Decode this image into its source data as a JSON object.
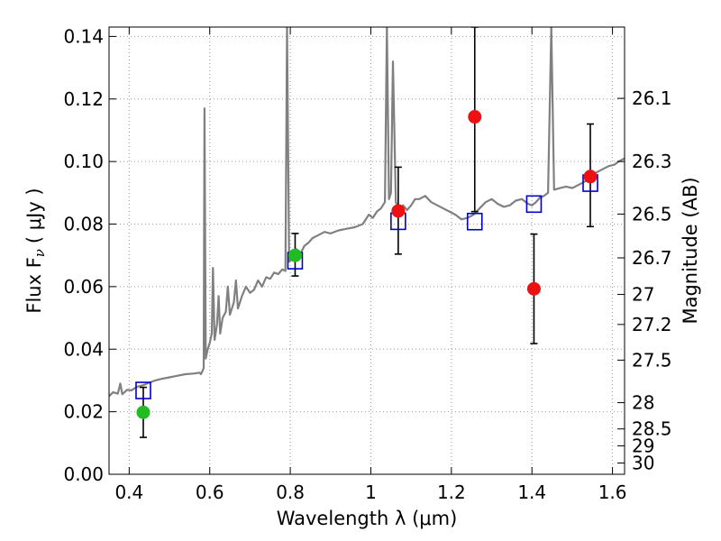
{
  "chart_data": {
    "type": "scatter",
    "xlabel": "Wavelength  λ (μm)",
    "ylabel": "Flux  F",
    "ylabel_sub": "ν",
    "ylabel_unit": "( μJy )",
    "y2label": "Magnitude (AB)",
    "xlim": [
      0.35,
      1.63
    ],
    "ylim": [
      0.0,
      0.143
    ],
    "grid": true,
    "x_ticks": [
      {
        "value": 0.4,
        "label": "0.4"
      },
      {
        "value": 0.6,
        "label": "0.6"
      },
      {
        "value": 0.8,
        "label": "0.8"
      },
      {
        "value": 1.0,
        "label": "1"
      },
      {
        "value": 1.2,
        "label": "1.2"
      },
      {
        "value": 1.4,
        "label": "1.4"
      },
      {
        "value": 1.6,
        "label": "1.6"
      }
    ],
    "y_ticks": [
      {
        "value": 0.0,
        "label": "0.00"
      },
      {
        "value": 0.02,
        "label": "0.02"
      },
      {
        "value": 0.04,
        "label": "0.04"
      },
      {
        "value": 0.06,
        "label": "0.06"
      },
      {
        "value": 0.08,
        "label": "0.08"
      },
      {
        "value": 0.1,
        "label": "0.10"
      },
      {
        "value": 0.12,
        "label": "0.12"
      },
      {
        "value": 0.14,
        "label": "0.14"
      }
    ],
    "mag_ticks": [
      {
        "flux": 0.1202,
        "label": "26.1"
      },
      {
        "flux": 0.1,
        "label": "26.3"
      },
      {
        "flux": 0.0832,
        "label": "26.5"
      },
      {
        "flux": 0.0692,
        "label": "26.7"
      },
      {
        "flux": 0.0575,
        "label": "27"
      },
      {
        "flux": 0.0479,
        "label": "27.2"
      },
      {
        "flux": 0.0365,
        "label": "27.5"
      },
      {
        "flux": 0.0229,
        "label": "28"
      },
      {
        "flux": 0.0145,
        "label": "28.5"
      },
      {
        "flux": 0.0091,
        "label": "29"
      },
      {
        "flux": 0.0036,
        "label": "30"
      }
    ],
    "model_points": [
      {
        "x": 0.435,
        "y": 0.0268
      },
      {
        "x": 0.812,
        "y": 0.0683
      },
      {
        "x": 1.068,
        "y": 0.0809
      },
      {
        "x": 1.258,
        "y": 0.0808
      },
      {
        "x": 1.405,
        "y": 0.0864
      },
      {
        "x": 1.545,
        "y": 0.0931
      }
    ],
    "obs_points": [
      {
        "x": 0.435,
        "y": 0.0198,
        "err_low": 0.0118,
        "err_high": 0.0278,
        "color": "#22bb22"
      },
      {
        "x": 0.812,
        "y": 0.07,
        "err_low": 0.0634,
        "err_high": 0.077,
        "color": "#22bb22"
      },
      {
        "x": 1.068,
        "y": 0.0842,
        "err_low": 0.0704,
        "err_high": 0.0982,
        "color": "#ee1111"
      },
      {
        "x": 1.258,
        "y": 0.1143,
        "err_low": 0.084,
        "err_high": 0.143,
        "color": "#ee1111"
      },
      {
        "x": 1.405,
        "y": 0.0593,
        "err_low": 0.0418,
        "err_high": 0.0768,
        "color": "#ee1111"
      },
      {
        "x": 1.545,
        "y": 0.0952,
        "err_low": 0.0792,
        "err_high": 0.112,
        "color": "#ee1111"
      }
    ],
    "spectrum": [
      [
        0.35,
        0.025
      ],
      [
        0.36,
        0.0262
      ],
      [
        0.372,
        0.0258
      ],
      [
        0.378,
        0.029
      ],
      [
        0.383,
        0.0256
      ],
      [
        0.395,
        0.027
      ],
      [
        0.405,
        0.0268
      ],
      [
        0.42,
        0.028
      ],
      [
        0.435,
        0.0285
      ],
      [
        0.45,
        0.0293
      ],
      [
        0.465,
        0.03
      ],
      [
        0.48,
        0.0305
      ],
      [
        0.5,
        0.031
      ],
      [
        0.52,
        0.0315
      ],
      [
        0.54,
        0.032
      ],
      [
        0.56,
        0.0322
      ],
      [
        0.575,
        0.0325
      ],
      [
        0.578,
        0.032
      ],
      [
        0.582,
        0.033
      ],
      [
        0.585,
        0.034
      ],
      [
        0.587,
        0.117
      ],
      [
        0.59,
        0.037
      ],
      [
        0.595,
        0.04
      ],
      [
        0.6,
        0.042
      ],
      [
        0.605,
        0.045
      ],
      [
        0.608,
        0.066
      ],
      [
        0.612,
        0.043
      ],
      [
        0.618,
        0.048
      ],
      [
        0.622,
        0.057
      ],
      [
        0.626,
        0.045
      ],
      [
        0.632,
        0.05
      ],
      [
        0.64,
        0.052
      ],
      [
        0.645,
        0.06
      ],
      [
        0.65,
        0.051
      ],
      [
        0.66,
        0.055
      ],
      [
        0.665,
        0.062
      ],
      [
        0.67,
        0.053
      ],
      [
        0.68,
        0.057
      ],
      [
        0.69,
        0.06
      ],
      [
        0.7,
        0.058
      ],
      [
        0.71,
        0.059
      ],
      [
        0.72,
        0.062
      ],
      [
        0.73,
        0.06
      ],
      [
        0.74,
        0.063
      ],
      [
        0.75,
        0.0625
      ],
      [
        0.76,
        0.0645
      ],
      [
        0.77,
        0.064
      ],
      [
        0.78,
        0.0655
      ],
      [
        0.788,
        0.065
      ],
      [
        0.792,
        0.143
      ],
      [
        0.797,
        0.068
      ],
      [
        0.805,
        0.069
      ],
      [
        0.815,
        0.072
      ],
      [
        0.825,
        0.0705
      ],
      [
        0.835,
        0.073
      ],
      [
        0.845,
        0.074
      ],
      [
        0.855,
        0.0755
      ],
      [
        0.87,
        0.0765
      ],
      [
        0.885,
        0.0775
      ],
      [
        0.9,
        0.077
      ],
      [
        0.92,
        0.078
      ],
      [
        0.94,
        0.0785
      ],
      [
        0.96,
        0.079
      ],
      [
        0.98,
        0.08
      ],
      [
        0.995,
        0.083
      ],
      [
        1.005,
        0.082
      ],
      [
        1.015,
        0.084
      ],
      [
        1.025,
        0.085
      ],
      [
        1.035,
        0.087
      ],
      [
        1.04,
        0.143
      ],
      [
        1.045,
        0.088
      ],
      [
        1.05,
        0.09
      ],
      [
        1.055,
        0.132
      ],
      [
        1.062,
        0.087
      ],
      [
        1.07,
        0.085
      ],
      [
        1.08,
        0.086
      ],
      [
        1.09,
        0.0845
      ],
      [
        1.1,
        0.086
      ],
      [
        1.11,
        0.088
      ],
      [
        1.12,
        0.088
      ],
      [
        1.135,
        0.089
      ],
      [
        1.15,
        0.087
      ],
      [
        1.165,
        0.086
      ],
      [
        1.18,
        0.085
      ],
      [
        1.195,
        0.084
      ],
      [
        1.21,
        0.083
      ],
      [
        1.225,
        0.0815
      ],
      [
        1.24,
        0.082
      ],
      [
        1.255,
        0.083
      ],
      [
        1.27,
        0.085
      ],
      [
        1.285,
        0.087
      ],
      [
        1.3,
        0.088
      ],
      [
        1.315,
        0.0865
      ],
      [
        1.33,
        0.0855
      ],
      [
        1.345,
        0.086
      ],
      [
        1.36,
        0.0875
      ],
      [
        1.375,
        0.088
      ],
      [
        1.39,
        0.0865
      ],
      [
        1.4,
        0.086
      ],
      [
        1.41,
        0.087
      ],
      [
        1.42,
        0.0885
      ],
      [
        1.43,
        0.089
      ],
      [
        1.44,
        0.09
      ],
      [
        1.448,
        0.143
      ],
      [
        1.455,
        0.091
      ],
      [
        1.47,
        0.0915
      ],
      [
        1.485,
        0.092
      ],
      [
        1.5,
        0.0915
      ],
      [
        1.515,
        0.0925
      ],
      [
        1.53,
        0.0935
      ],
      [
        1.545,
        0.095
      ],
      [
        1.56,
        0.0965
      ],
      [
        1.575,
        0.0975
      ],
      [
        1.59,
        0.0985
      ],
      [
        1.605,
        0.099
      ],
      [
        1.615,
        0.1
      ],
      [
        1.63,
        0.101
      ]
    ],
    "colors": {
      "spectrum": "#808080",
      "model_marker": "#0000cc",
      "error_bar": "#000000",
      "grid": "#999999",
      "axes": "#000000"
    }
  }
}
